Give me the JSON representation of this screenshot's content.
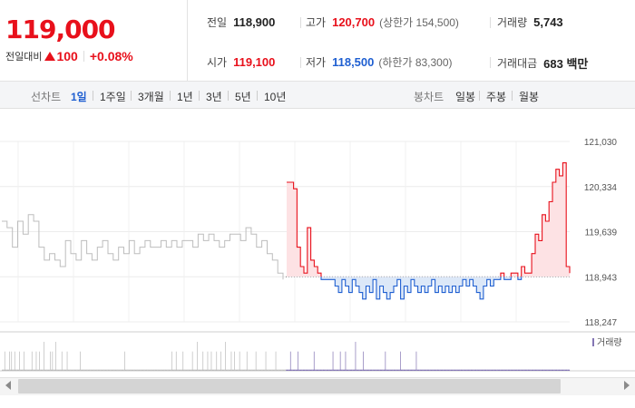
{
  "quote": {
    "price": "119,000",
    "change_label": "전일대비",
    "change_amount": "100",
    "change_percent": "+0.08%",
    "prev_close_label": "전일",
    "prev_close": "118,900",
    "high_label": "고가",
    "high": "120,700",
    "upper_limit_text": "(상한가 154,500)",
    "volume_label": "거래량",
    "volume": "5,743",
    "open_label": "시가",
    "open": "119,100",
    "low_label": "저가",
    "low": "118,500",
    "lower_limit_text": "(하한가 83,300)",
    "amount_label": "거래대금",
    "amount": "683 백만"
  },
  "toolbar": {
    "line_label": "선차트",
    "line_periods": [
      "1일",
      "1주일",
      "3개월",
      "1년",
      "3년",
      "5년",
      "10년"
    ],
    "active_period": "1일",
    "candle_label": "봉차트",
    "candle_periods": [
      "일봉",
      "주봉",
      "월봉"
    ]
  },
  "colors": {
    "up": "#e8101b",
    "down": "#1f5fd1",
    "prev_line": "#bdbdbd",
    "up_fill": "#fde2e4",
    "down_fill": "#dce8f8",
    "volume_bar": "#8476b4"
  },
  "chart_data": {
    "type": "line",
    "title": "",
    "xlabel": "",
    "ylabel": "",
    "baseline": 118943,
    "ylim": [
      118247,
      121030
    ],
    "yticks": [
      "121,030",
      "120,334",
      "119,639",
      "118,943",
      "118,247"
    ],
    "legend": "거래량",
    "legend_position": "top-right",
    "grid": true,
    "series": [
      {
        "values": [
          119800,
          119700,
          119400,
          119800,
          119600,
          119900,
          119800,
          119400,
          119200,
          119300,
          119200,
          119100,
          119500,
          119300,
          119200,
          119500,
          119300,
          119200,
          119400,
          119500,
          119300,
          119200,
          119400,
          119300,
          119500,
          119300,
          119400,
          119500,
          119400,
          119400,
          119500,
          119400,
          119500,
          119400,
          119500,
          119500,
          119400,
          119600,
          119500,
          119600,
          119500,
          119400,
          119500,
          119600,
          119600,
          119500,
          119700,
          119600,
          119400,
          119500,
          119300,
          119200,
          119000,
          118900
        ]
      },
      {
        "values": [
          120400,
          120400,
          120300,
          119400,
          119100,
          119000,
          119700,
          119200,
          119100,
          119000,
          118900,
          118900,
          118900,
          118900,
          118800,
          118700,
          118900,
          118800,
          118700,
          118900,
          118800,
          118700,
          118600,
          118800,
          118700,
          118900,
          118600,
          118800,
          118700,
          118600,
          118700,
          118800,
          118900,
          118600,
          118800,
          118700,
          118900,
          118800,
          118700,
          118800,
          118700,
          118800,
          118900,
          118700,
          118800,
          118700,
          118800,
          118700,
          118800,
          118700,
          118800,
          118900,
          118800,
          118900,
          118800,
          118700,
          118600,
          118800,
          118900,
          118800,
          118900,
          118900,
          119000,
          118900,
          118900,
          119000,
          119000,
          118900,
          119100,
          119000,
          119000,
          119300,
          119600,
          119500,
          119900,
          119800,
          120100,
          120400,
          120600,
          120500,
          120700,
          119100,
          119000
        ]
      }
    ],
    "volume_values": [
      1,
      1,
      1,
      1,
      1,
      2,
      1,
      1,
      1,
      1,
      1,
      1,
      1,
      1,
      2,
      1,
      1,
      1,
      2,
      1,
      1,
      1,
      1,
      1,
      2,
      1,
      1,
      1,
      1,
      1,
      1,
      1,
      1,
      2,
      1,
      1,
      1,
      1,
      1,
      1,
      1,
      1,
      2,
      1,
      1,
      1,
      1,
      1,
      1,
      1,
      1,
      1,
      1,
      1,
      1,
      1,
      1,
      2,
      1,
      1,
      1,
      1,
      1,
      1,
      1,
      2,
      1,
      1,
      1,
      1,
      1,
      2,
      1,
      1,
      1,
      1,
      1,
      1,
      1,
      1,
      3,
      1,
      1,
      1,
      1,
      1,
      1,
      1,
      1,
      1,
      1,
      1,
      2,
      1,
      1,
      1,
      2,
      1,
      1,
      1,
      1,
      1,
      3,
      1,
      1,
      1,
      1,
      1,
      1,
      1,
      1,
      1,
      1,
      1,
      2,
      1,
      1,
      1,
      1,
      1,
      1,
      1,
      1,
      1,
      2,
      1,
      1,
      1,
      1,
      1,
      1,
      1,
      1,
      1,
      1,
      1,
      1,
      1,
      1,
      1,
      1,
      1,
      1,
      1,
      1,
      1,
      1,
      1,
      1,
      2,
      1,
      1,
      1,
      1,
      1,
      1,
      1,
      1,
      1,
      1,
      1,
      1,
      1,
      1,
      1,
      1,
      1,
      1,
      1,
      1,
      1,
      1,
      1,
      1,
      1,
      1,
      1,
      1,
      1,
      1,
      1,
      1,
      1,
      1,
      1,
      1,
      1,
      1,
      1,
      1,
      1,
      1,
      1,
      1,
      1,
      1,
      1,
      1,
      1,
      1,
      1,
      1,
      1,
      1,
      1,
      1,
      1,
      1,
      1,
      1,
      1,
      1,
      1,
      1,
      1,
      1,
      1,
      1,
      1,
      1,
      1,
      1,
      1,
      1,
      1,
      1,
      1,
      1,
      1,
      1,
      1,
      1,
      1,
      1,
      2,
      1,
      1,
      1,
      1,
      1,
      1,
      1,
      1,
      1,
      1,
      1,
      1,
      1,
      1,
      1,
      1,
      1,
      1,
      1,
      1,
      1,
      1,
      1,
      1,
      1,
      1,
      1,
      1,
      1,
      1,
      1,
      1,
      1,
      1,
      1,
      1,
      1,
      1,
      1,
      1,
      1,
      1,
      1,
      1,
      1,
      1,
      1,
      1,
      1,
      1,
      1,
      1,
      1,
      1,
      1,
      1,
      1,
      1,
      1,
      1,
      1,
      1,
      1,
      1,
      1,
      1,
      1,
      1,
      1,
      1,
      1,
      1,
      1,
      1,
      1,
      1,
      1,
      1,
      1,
      1,
      1,
      1,
      1,
      1,
      1,
      1,
      1,
      1,
      1,
      2,
      1,
      1,
      1,
      1,
      1,
      1,
      1,
      2,
      1,
      1,
      1,
      1,
      1,
      1,
      1,
      1,
      1,
      1,
      1,
      1,
      2,
      1,
      1,
      1,
      1,
      1,
      1,
      1,
      1,
      1,
      1,
      1,
      1,
      1,
      1,
      1,
      1,
      1,
      2,
      1,
      1,
      1,
      1,
      1,
      1,
      1,
      1,
      3,
      1,
      1,
      1,
      1,
      1,
      1,
      1,
      1,
      1,
      1,
      2,
      1,
      1,
      1,
      1,
      1,
      1,
      1,
      1,
      2,
      1,
      1,
      1,
      1,
      1,
      1,
      2,
      1,
      1,
      1,
      1,
      1,
      1,
      1,
      1,
      1,
      2,
      1,
      1,
      1,
      1,
      1,
      1,
      1,
      2,
      1,
      1,
      1,
      1,
      1,
      1,
      1,
      1,
      3,
      1,
      1,
      1,
      1,
      1,
      1,
      1,
      1,
      1,
      1,
      2,
      1,
      1,
      1,
      1,
      1,
      2,
      1,
      1,
      1,
      1,
      1,
      1,
      1,
      1,
      1,
      2,
      1,
      1,
      1,
      1,
      1,
      1,
      1,
      1,
      1,
      1,
      1,
      1,
      1,
      2,
      1,
      1,
      1,
      1,
      1,
      1,
      1,
      1,
      1,
      1,
      1,
      1,
      1,
      1,
      1,
      1,
      2,
      1,
      1,
      1,
      1,
      1,
      1,
      1,
      1,
      1,
      1,
      1,
      1,
      1,
      1,
      1,
      1,
      1,
      1,
      2,
      1,
      1,
      1,
      1,
      1,
      1,
      1,
      1,
      1,
      1,
      1,
      1,
      1,
      1,
      1,
      1,
      1,
      1,
      2,
      1,
      1,
      1,
      1,
      1,
      1,
      1,
      1,
      1,
      1,
      1,
      1,
      1,
      1,
      1,
      1,
      1,
      1,
      1,
      1,
      1,
      1,
      1,
      1,
      1,
      1,
      1,
      2,
      1,
      1,
      1,
      1,
      1,
      1,
      1,
      1,
      1,
      1,
      1,
      1,
      1,
      2,
      1,
      1,
      1,
      1,
      1,
      1,
      1,
      1,
      1,
      1,
      1,
      1,
      1,
      1,
      1,
      1,
      1,
      1,
      1,
      1,
      1,
      1,
      1,
      1,
      1,
      1,
      1,
      1,
      1,
      1,
      2,
      1,
      1,
      1,
      1,
      1,
      1,
      1,
      1,
      1,
      1,
      1,
      1,
      1,
      1,
      1,
      1,
      1,
      1,
      1,
      1,
      1,
      1,
      1,
      1,
      1,
      1,
      1,
      1,
      1,
      1,
      1,
      1,
      1,
      1,
      1,
      2,
      1,
      1,
      1,
      1,
      1,
      1,
      1,
      1,
      1,
      1,
      1,
      1,
      1,
      2,
      1,
      1,
      1,
      1,
      1,
      1,
      1,
      1,
      1,
      2,
      1,
      1,
      1,
      1,
      1,
      1,
      1,
      1,
      1,
      1,
      1,
      1,
      1,
      1,
      1,
      1,
      1,
      1,
      3,
      1,
      1,
      1,
      1,
      1,
      1,
      1,
      1,
      1,
      1,
      1,
      1,
      1,
      1,
      2,
      1,
      1,
      1,
      1,
      1,
      1,
      1,
      1,
      1,
      1,
      1,
      1,
      1,
      1,
      1,
      1,
      1,
      1,
      1,
      1,
      1,
      1,
      1,
      1,
      1,
      1,
      1,
      1,
      1,
      1,
      1,
      1,
      1,
      1,
      1,
      1,
      1,
      1,
      1,
      1,
      1,
      2,
      1,
      1,
      1,
      1,
      1,
      1,
      1,
      1,
      1,
      1,
      1,
      1,
      1,
      1,
      1,
      1,
      1,
      1,
      1,
      1,
      1,
      1,
      1,
      1,
      1,
      1,
      1,
      1,
      2,
      1,
      1,
      1,
      1,
      1,
      1,
      1,
      1,
      1,
      1,
      1,
      1,
      1,
      1,
      1,
      1,
      1,
      1,
      1,
      1,
      1,
      1,
      1,
      1,
      1,
      1,
      1,
      1,
      1,
      2,
      1,
      1,
      1,
      1,
      1,
      1,
      1,
      1,
      1,
      1,
      1,
      1,
      1,
      1,
      1,
      1,
      1,
      1,
      1,
      1,
      1,
      1,
      1,
      1,
      1,
      1,
      1,
      1,
      1,
      1,
      1,
      1,
      1,
      1,
      1,
      1,
      1,
      1,
      1,
      1,
      1,
      1,
      1,
      1,
      1,
      1,
      1,
      1,
      1,
      1,
      1,
      1,
      1,
      1,
      1,
      1,
      1,
      1,
      1,
      1,
      1,
      1,
      1,
      1,
      1,
      1,
      1,
      1,
      1,
      1,
      1,
      1,
      1,
      1,
      1,
      1,
      1,
      1,
      1,
      1,
      1,
      1,
      1,
      1,
      1,
      1,
      1,
      1,
      1,
      1,
      1,
      1,
      1,
      1,
      1,
      1,
      1,
      1,
      1,
      1,
      1,
      1,
      1,
      1,
      1,
      1,
      1,
      1,
      1,
      1,
      1,
      1,
      1,
      1,
      1,
      1,
      1,
      1,
      1,
      1,
      1,
      1,
      1,
      1,
      1,
      1,
      1,
      1,
      1,
      1,
      1,
      1,
      1,
      1,
      1,
      1,
      1,
      1,
      1,
      1,
      1,
      1,
      1,
      1,
      1,
      1,
      1,
      1,
      1,
      1,
      1,
      1,
      1,
      1,
      1,
      1,
      1,
      1,
      1,
      1,
      1,
      1,
      1,
      1,
      1,
      1,
      1,
      1,
      1,
      1,
      1,
      1,
      1,
      1,
      1,
      1,
      1,
      1,
      1,
      1,
      1,
      1,
      1,
      1,
      1,
      1,
      1,
      1,
      1,
      1,
      1,
      1,
      1,
      1,
      1,
      1,
      1,
      1,
      1,
      1,
      1,
      1,
      1,
      1,
      1,
      1,
      1,
      1,
      1,
      1,
      1,
      1,
      1,
      1,
      1,
      1,
      1,
      1,
      1,
      1,
      1,
      1,
      1,
      1,
      1,
      1,
      1,
      1,
      1,
      1,
      1,
      1,
      1,
      1,
      1,
      1,
      1,
      1,
      1,
      1,
      1,
      1,
      1,
      1,
      1,
      1,
      1,
      1,
      1,
      1,
      1,
      1,
      1,
      1,
      1,
      1,
      1,
      1,
      1,
      1,
      1,
      1,
      1,
      1,
      1,
      1,
      1,
      1,
      1,
      1,
      1,
      1,
      1,
      1,
      1,
      1,
      1,
      1,
      1,
      1,
      1,
      1,
      1,
      1,
      1,
      1,
      1,
      1,
      1,
      1,
      1,
      1
    ]
  }
}
